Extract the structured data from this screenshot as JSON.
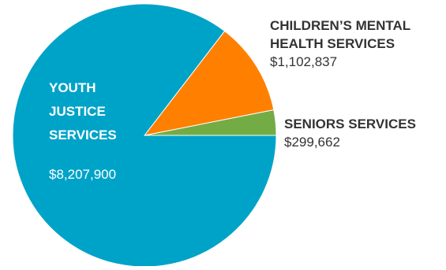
{
  "chart_data": {
    "type": "pie",
    "title": "",
    "slices": [
      {
        "label": "YOUTH JUSTICE SERVICES",
        "value_text": "$8,207,900",
        "value": 8207900,
        "color": "#00a3c8"
      },
      {
        "label": "CHILDREN’S MENTAL HEALTH SERVICES",
        "value_text": "$1,102,837",
        "value": 1102837,
        "color": "#ff8000"
      },
      {
        "label": "SENIORS SERVICES",
        "value_text": "$299,662",
        "value": 299662,
        "color": "#73ac45"
      }
    ],
    "legend": "none"
  }
}
